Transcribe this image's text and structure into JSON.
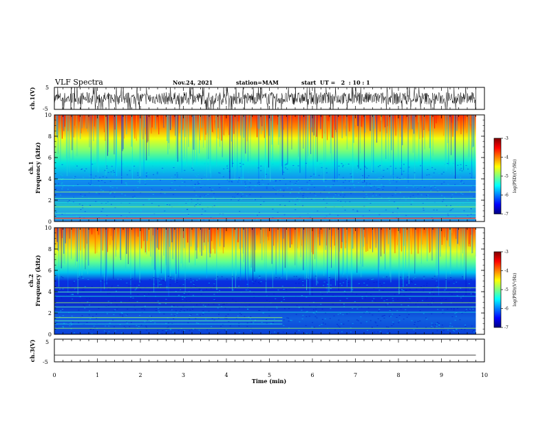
{
  "header": {
    "title": "VLF Spectra",
    "date": "Nov.24, 2021",
    "station": "station=MAM",
    "start_ut": "start  UT =   2  : 10 : 1"
  },
  "colors": {
    "colormap": [
      "#00007f",
      "#0000ff",
      "#007fff",
      "#00ffff",
      "#7fff7f",
      "#ffff00",
      "#ff7f00",
      "#ff0000",
      "#7f0000"
    ]
  },
  "chart_data": [
    {
      "type": "line",
      "panel": "waveform-ch1",
      "ylabel": "ch.1(V)",
      "ylim": [
        -5,
        5
      ],
      "yticks": [
        "5",
        "-5"
      ],
      "xlim": [
        0,
        10
      ],
      "description_signal": "dense noisy waveform, amplitude approx ±5 V, ending near 9.8 min"
    },
    {
      "type": "heatmap",
      "panel": "spectrogram-ch1",
      "ylabel": "ch.1\nFrequency (kHz)",
      "ylim": [
        0,
        10
      ],
      "yticks": [
        "0",
        "2",
        "4",
        "6",
        "8",
        "10"
      ],
      "xlim": [
        0,
        10
      ],
      "data_end_min": 9.8,
      "colorbar": {
        "label": "log(PSD)(V²/Hz)",
        "range": [
          -7,
          -3
        ],
        "ticks": [
          "-3",
          "-4",
          "-5",
          "-6",
          "-7"
        ]
      }
    },
    {
      "type": "heatmap",
      "panel": "spectrogram-ch2",
      "ylabel": "ch.2\nFrequency (kHz)",
      "ylim": [
        0,
        10
      ],
      "yticks": [
        "0",
        "2",
        "4",
        "6",
        "8",
        "10"
      ],
      "xlim": [
        0,
        10
      ],
      "data_end_min": 9.8,
      "colorbar": {
        "label": "log(PSD)(V²/Hz)",
        "range": [
          -7,
          -3
        ],
        "ticks": [
          "-3",
          "-4",
          "-5",
          "-6",
          "-7"
        ]
      }
    },
    {
      "type": "line",
      "panel": "waveform-ch3",
      "ylabel": "ch.3(V)",
      "ylim": [
        -5,
        5
      ],
      "yticks": [
        "5",
        "-5"
      ],
      "x": [
        0,
        9.8
      ],
      "y": [
        -2,
        -2
      ],
      "xlim": [
        0,
        10
      ]
    }
  ],
  "xaxis": {
    "label": "Time (min)",
    "ticks": [
      "0",
      "1",
      "2",
      "3",
      "4",
      "5",
      "6",
      "7",
      "8",
      "9",
      "10"
    ]
  },
  "labels": {
    "ch1_wave_ylabel": "ch.1(V)",
    "ch1_spec_ylabel_top": "ch.1",
    "ch1_spec_ylabel_bottom": "Frequency (kHz)",
    "ch2_spec_ylabel_top": "ch.2",
    "ch2_spec_ylabel_bottom": "Frequency (kHz)",
    "ch3_wave_ylabel": "ch.3(V)",
    "cbar_label": "log(PSD)(V²/Hz)"
  }
}
